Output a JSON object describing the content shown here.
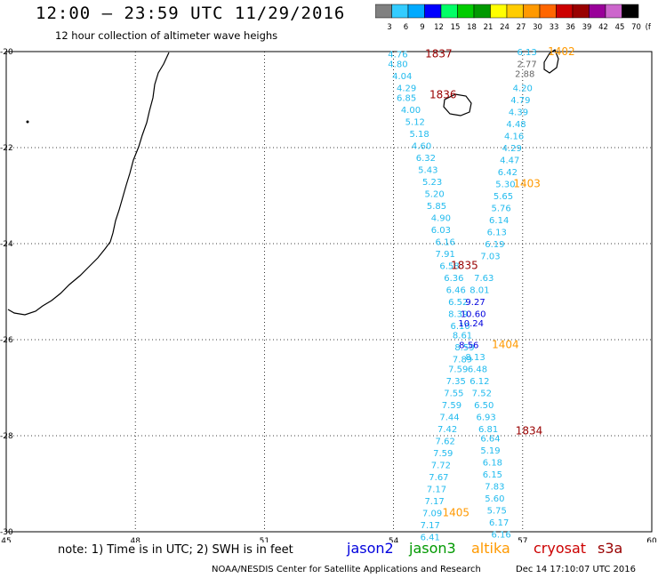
{
  "header": {
    "title": "12:00 — 23:59 UTC 11/29/2016",
    "subtitle": "12 hour collection of altimeter wave heighs"
  },
  "color_scale": {
    "labels": [
      "3",
      "6",
      "9",
      "12",
      "15",
      "18",
      "21",
      "24",
      "27",
      "30",
      "33",
      "36",
      "39",
      "42",
      "45",
      "70",
      "(ft)"
    ],
    "colors": [
      "#808080",
      "#33ccff",
      "#00aaff",
      "#0000ff",
      "#00ff66",
      "#00cc00",
      "#009900",
      "#ffff00",
      "#ffcc00",
      "#ff9900",
      "#ff6600",
      "#cc0000",
      "#990000",
      "#990099",
      "#cc66cc",
      "#000000"
    ]
  },
  "footer": {
    "note": "note: 1) Time is in UTC; 2) SWH is in feet",
    "legend": [
      {
        "name": "jason2",
        "color": "#0000dd"
      },
      {
        "name": "jason3",
        "color": "#009900"
      },
      {
        "name": "altika",
        "color": "#ff9900"
      },
      {
        "name": "cryosat",
        "color": "#cc0000"
      },
      {
        "name": "s3a",
        "color": "#990000"
      }
    ],
    "credit": "NOAA/NESDIS Center for Satellite Applications and Research",
    "timestamp": "Dec 14 17:10:07 UTC 2016"
  },
  "chart_data": {
    "type": "scatter",
    "xlabel": "",
    "ylabel": "",
    "xlim": [
      45,
      60
    ],
    "ylim": [
      -30,
      -20
    ],
    "xticks": [
      45,
      48,
      51,
      54,
      57,
      60
    ],
    "yticks": [
      -20,
      -22,
      -24,
      -26,
      -28,
      -30
    ],
    "grid": true,
    "pass_times": [
      {
        "text": "1837",
        "lon": 55.05,
        "lat": -20.05,
        "color": "#990000"
      },
      {
        "text": "1836",
        "lon": 55.15,
        "lat": -20.9,
        "color": "#990000"
      },
      {
        "text": "1835",
        "lon": 55.65,
        "lat": -24.45,
        "color": "#990000"
      },
      {
        "text": "1834",
        "lon": 57.15,
        "lat": -27.9,
        "color": "#990000"
      },
      {
        "text": "1402",
        "lon": 57.9,
        "lat": -20.0,
        "color": "#ff9900"
      },
      {
        "text": "1403",
        "lon": 57.1,
        "lat": -22.75,
        "color": "#ff9900"
      },
      {
        "text": "1404",
        "lon": 56.6,
        "lat": -26.1,
        "color": "#ff9900"
      },
      {
        "text": "1405",
        "lon": 55.45,
        "lat": -29.6,
        "color": "#ff9900"
      }
    ],
    "track_jason2": {
      "color": "#00bfff",
      "lon": [
        54.1,
        54.2,
        54.3,
        54.4,
        54.5,
        54.6,
        54.7,
        54.75,
        54.8,
        54.85,
        54.9,
        54.95,
        55.0,
        55.1,
        55.15,
        55.2,
        55.3,
        55.35,
        55.4,
        55.45,
        55.5,
        55.55,
        55.6,
        55.65,
        55.7,
        55.75,
        55.75,
        55.7,
        55.65,
        55.6,
        55.55,
        55.5,
        55.4,
        55.35,
        55.3,
        55.25,
        55.2,
        55.15,
        55.1,
        55.05,
        55.0,
        54.95,
        54.9,
        54.85,
        54.8,
        54.75
      ],
      "lat": [
        -20.05,
        -20.25,
        -20.5,
        -20.75,
        -21.0,
        -21.2,
        -21.4,
        -21.65,
        -21.9,
        -22.1,
        -22.35,
        -22.6,
        -22.85,
        -23.1,
        -23.35,
        -23.6,
        -23.85,
        -24.1,
        -24.4,
        -24.65,
        -24.9,
        -25.15,
        -25.4,
        -25.65,
        -25.9,
        -26.15,
        -26.4,
        -26.6,
        -26.85,
        -27.1,
        -27.35,
        -27.6,
        -27.85,
        -28.1,
        -28.35,
        -28.6,
        -28.85,
        -29.1,
        -29.35,
        -29.6,
        -29.85,
        -29.65,
        -29.4,
        -29.15,
        -28.9,
        -28.65
      ],
      "values": [
        "4.76",
        "4.80",
        "4.04",
        "4.29",
        "6.85",
        "4.00",
        "5.12",
        "5.18",
        "4.60",
        "6.32",
        "5.43",
        "5.23",
        "5.20",
        "5.85",
        "4.90",
        "6.03",
        "6.16",
        "7.91",
        "6.58",
        "6.36",
        "6.46",
        "6.52",
        "8.39",
        "6.10",
        "8.61",
        "8.59",
        "7.89",
        "7.59",
        "7.35",
        "7.55",
        "7.59",
        "7.44",
        "7.42",
        "7.62",
        "7.59",
        "7.72",
        "7.67",
        "7.17",
        "7.17",
        "7.09",
        "7.17",
        "6.41",
        "",
        "",
        "",
        ""
      ]
    },
    "track_values_left": [
      {
        "v": "4.76",
        "lon": 54.1,
        "lat": -20.05
      },
      {
        "v": "4.80",
        "lon": 54.1,
        "lat": -20.25
      },
      {
        "v": "4.04",
        "lon": 54.2,
        "lat": -20.5
      },
      {
        "v": "4.29",
        "lon": 54.3,
        "lat": -20.75
      },
      {
        "v": "6.85",
        "lon": 54.3,
        "lat": -20.95
      },
      {
        "v": "4.00",
        "lon": 54.4,
        "lat": -21.2
      },
      {
        "v": "5.12",
        "lon": 54.5,
        "lat": -21.45
      },
      {
        "v": "5.18",
        "lon": 54.6,
        "lat": -21.7
      },
      {
        "v": "4.60",
        "lon": 54.65,
        "lat": -21.95
      },
      {
        "v": "6.32",
        "lon": 54.75,
        "lat": -22.2
      },
      {
        "v": "5.43",
        "lon": 54.8,
        "lat": -22.45
      },
      {
        "v": "5.23",
        "lon": 54.9,
        "lat": -22.7
      },
      {
        "v": "5.20",
        "lon": 54.95,
        "lat": -22.95
      },
      {
        "v": "5.85",
        "lon": 55.0,
        "lat": -23.2
      },
      {
        "v": "4.90",
        "lon": 55.1,
        "lat": -23.45
      },
      {
        "v": "6.03",
        "lon": 55.1,
        "lat": -23.7
      },
      {
        "v": "6.16",
        "lon": 55.2,
        "lat": -23.95
      },
      {
        "v": "7.91",
        "lon": 55.2,
        "lat": -24.2
      },
      {
        "v": "6.58",
        "lon": 55.3,
        "lat": -24.45
      },
      {
        "v": "6.36",
        "lon": 55.4,
        "lat": -24.7
      },
      {
        "v": "6.46",
        "lon": 55.45,
        "lat": -24.95
      },
      {
        "v": "6.52",
        "lon": 55.5,
        "lat": -25.2
      },
      {
        "v": "8.39",
        "lon": 55.5,
        "lat": -25.45
      },
      {
        "v": "6.10",
        "lon": 55.55,
        "lat": -25.7
      },
      {
        "v": "8.61",
        "lon": 55.6,
        "lat": -25.9
      },
      {
        "v": "8.59",
        "lon": 55.65,
        "lat": -26.15
      },
      {
        "v": "7.89",
        "lon": 55.6,
        "lat": -26.4
      },
      {
        "v": "7.59",
        "lon": 55.5,
        "lat": -26.6
      },
      {
        "v": "7.35",
        "lon": 55.45,
        "lat": -26.85
      },
      {
        "v": "7.55",
        "lon": 55.4,
        "lat": -27.1
      },
      {
        "v": "7.59",
        "lon": 55.35,
        "lat": -27.35
      },
      {
        "v": "7.44",
        "lon": 55.3,
        "lat": -27.6
      },
      {
        "v": "7.42",
        "lon": 55.25,
        "lat": -27.85
      },
      {
        "v": "7.62",
        "lon": 55.2,
        "lat": -28.1
      },
      {
        "v": "7.59",
        "lon": 55.15,
        "lat": -28.35
      },
      {
        "v": "7.72",
        "lon": 55.1,
        "lat": -28.6
      },
      {
        "v": "7.67",
        "lon": 55.05,
        "lat": -28.85
      },
      {
        "v": "7.17",
        "lon": 55.0,
        "lat": -29.1
      },
      {
        "v": "7.17",
        "lon": 54.95,
        "lat": -29.35
      },
      {
        "v": "7.09",
        "lon": 54.9,
        "lat": -29.6
      },
      {
        "v": "7.17",
        "lon": 54.85,
        "lat": -29.85
      },
      {
        "v": "6.41",
        "lon": 54.85,
        "lat": -30.1
      }
    ],
    "track_values_right": [
      {
        "v": "6.13",
        "lon": 57.1,
        "lat": -20.0
      },
      {
        "v": "2.77",
        "lon": 57.1,
        "lat": -20.25
      },
      {
        "v": "2.88",
        "lon": 57.05,
        "lat": -20.45
      },
      {
        "v": "4.20",
        "lon": 57.0,
        "lat": -20.75
      },
      {
        "v": "4.79",
        "lon": 56.95,
        "lat": -21.0
      },
      {
        "v": "4.39",
        "lon": 56.9,
        "lat": -21.25
      },
      {
        "v": "4.48",
        "lon": 56.85,
        "lat": -21.5
      },
      {
        "v": "4.16",
        "lon": 56.8,
        "lat": -21.75
      },
      {
        "v": "4.29",
        "lon": 56.75,
        "lat": -22.0
      },
      {
        "v": "4.47",
        "lon": 56.7,
        "lat": -22.25
      },
      {
        "v": "6.42",
        "lon": 56.65,
        "lat": -22.5
      },
      {
        "v": "5.30",
        "lon": 56.6,
        "lat": -22.75
      },
      {
        "v": "5.65",
        "lon": 56.55,
        "lat": -23.0
      },
      {
        "v": "5.76",
        "lon": 56.5,
        "lat": -23.25
      },
      {
        "v": "6.14",
        "lon": 56.45,
        "lat": -23.5
      },
      {
        "v": "6.13",
        "lon": 56.4,
        "lat": -23.75
      },
      {
        "v": "6.19",
        "lon": 56.35,
        "lat": -24.0
      },
      {
        "v": "7.03",
        "lon": 56.25,
        "lat": -24.25
      },
      {
        "v": "7.63",
        "lon": 56.1,
        "lat": -24.7
      },
      {
        "v": "8.01",
        "lon": 56.0,
        "lat": -24.95
      },
      {
        "v": "9.27",
        "lon": 55.9,
        "lat": -25.2
      },
      {
        "v": "10.60",
        "lon": 55.85,
        "lat": -25.45
      },
      {
        "v": "10.24",
        "lon": 55.8,
        "lat": -25.65
      },
      {
        "v": "8.56",
        "lon": 55.75,
        "lat": -26.1
      },
      {
        "v": "8.13",
        "lon": 55.9,
        "lat": -26.35
      },
      {
        "v": "6.48",
        "lon": 55.95,
        "lat": -26.6
      },
      {
        "v": "6.12",
        "lon": 56.0,
        "lat": -26.85
      },
      {
        "v": "7.52",
        "lon": 56.05,
        "lat": -27.1
      },
      {
        "v": "6.50",
        "lon": 56.1,
        "lat": -27.35
      },
      {
        "v": "6.93",
        "lon": 56.15,
        "lat": -27.6
      },
      {
        "v": "6.81",
        "lon": 56.2,
        "lat": -27.85
      },
      {
        "v": "6.64",
        "lon": 56.25,
        "lat": -28.05
      },
      {
        "v": "5.19",
        "lon": 56.25,
        "lat": -28.3
      },
      {
        "v": "6.18",
        "lon": 56.3,
        "lat": -28.55
      },
      {
        "v": "6.15",
        "lon": 56.3,
        "lat": -28.8
      },
      {
        "v": "7.83",
        "lon": 56.35,
        "lat": -29.05
      },
      {
        "v": "5.60",
        "lon": 56.35,
        "lat": -29.3
      },
      {
        "v": "5.75",
        "lon": 56.4,
        "lat": -29.55
      },
      {
        "v": "6.17",
        "lon": 56.45,
        "lat": -29.8
      },
      {
        "v": "6.16",
        "lon": 56.5,
        "lat": -30.05
      }
    ]
  }
}
